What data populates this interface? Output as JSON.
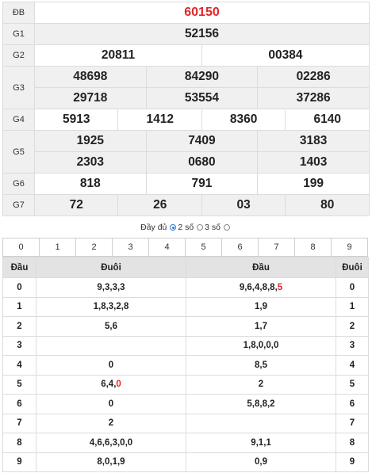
{
  "results": {
    "db": {
      "label": "ĐB",
      "values": [
        "60150"
      ]
    },
    "g1": {
      "label": "G1",
      "values": [
        "52156"
      ]
    },
    "g2": {
      "label": "G2",
      "values": [
        "20811",
        "00384"
      ]
    },
    "g3": {
      "label": "G3",
      "values": [
        "48698",
        "84290",
        "02286",
        "29718",
        "53554",
        "37286"
      ]
    },
    "g4": {
      "label": "G4",
      "values": [
        "5913",
        "1412",
        "8360",
        "6140"
      ]
    },
    "g5": {
      "label": "G5",
      "values": [
        "1925",
        "7409",
        "3183",
        "2303",
        "0680",
        "1403"
      ]
    },
    "g6": {
      "label": "G6",
      "values": [
        "818",
        "791",
        "199"
      ]
    },
    "g7": {
      "label": "G7",
      "values": [
        "72",
        "26",
        "03",
        "80"
      ]
    }
  },
  "options": {
    "full_label": "Đầy đủ",
    "two_label": "2 số",
    "three_label": "3 số",
    "selected": "full"
  },
  "digit_bar": [
    "0",
    "1",
    "2",
    "3",
    "4",
    "5",
    "6",
    "7",
    "8",
    "9"
  ],
  "loto": {
    "headers": [
      "Đầu",
      "Đuôi",
      "Đầu",
      "Đuôi"
    ],
    "rows": [
      {
        "dau": "0",
        "duoi_list": [
          {
            "t": "9,3,3,3"
          }
        ],
        "dau_list": [
          {
            "t": "9,6,4,8,8,"
          },
          {
            "t": "5",
            "hl": true
          }
        ],
        "duoi": "0"
      },
      {
        "dau": "1",
        "duoi_list": [
          {
            "t": "1,8,3,2,8"
          }
        ],
        "dau_list": [
          {
            "t": "1,9"
          }
        ],
        "duoi": "1"
      },
      {
        "dau": "2",
        "duoi_list": [
          {
            "t": "5,6"
          }
        ],
        "dau_list": [
          {
            "t": "1,7"
          }
        ],
        "duoi": "2"
      },
      {
        "dau": "3",
        "duoi_list": [],
        "dau_list": [
          {
            "t": "1,8,0,0,0"
          }
        ],
        "duoi": "3"
      },
      {
        "dau": "4",
        "duoi_list": [
          {
            "t": "0"
          }
        ],
        "dau_list": [
          {
            "t": "8,5"
          }
        ],
        "duoi": "4"
      },
      {
        "dau": "5",
        "duoi_list": [
          {
            "t": "6,4,"
          },
          {
            "t": "0",
            "hl": true
          }
        ],
        "dau_list": [
          {
            "t": "2"
          }
        ],
        "duoi": "5"
      },
      {
        "dau": "6",
        "duoi_list": [
          {
            "t": "0"
          }
        ],
        "dau_list": [
          {
            "t": "5,8,8,2"
          }
        ],
        "duoi": "6"
      },
      {
        "dau": "7",
        "duoi_list": [
          {
            "t": "2"
          }
        ],
        "dau_list": [],
        "duoi": "7"
      },
      {
        "dau": "8",
        "duoi_list": [
          {
            "t": "4,6,6,3,0,0"
          }
        ],
        "dau_list": [
          {
            "t": "9,1,1"
          }
        ],
        "duoi": "8"
      },
      {
        "dau": "9",
        "duoi_list": [
          {
            "t": "8,0,1,9"
          }
        ],
        "dau_list": [
          {
            "t": "0,9"
          }
        ],
        "duoi": "9"
      }
    ]
  },
  "colors": {
    "special": "#e0262b",
    "radio_selected": "#2a7ad6",
    "alt_row": "#f0f0f0",
    "header_bg": "#e3e3e3"
  }
}
